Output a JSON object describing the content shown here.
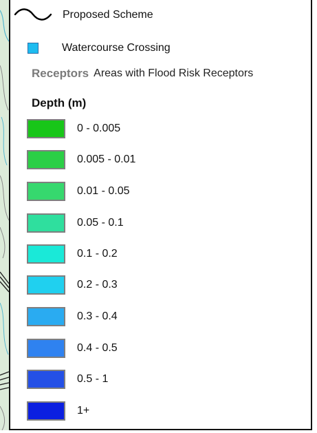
{
  "legend": {
    "proposed_scheme": {
      "label": "Proposed Scheme",
      "icon": "wavy-line-icon",
      "color": "#000000"
    },
    "watercourse_crossing": {
      "label": "Watercourse Crossing",
      "icon": "square-icon",
      "color": "#1ebcf0"
    },
    "receptors": {
      "name": "Receptors",
      "description": "Areas with Flood Risk Receptors",
      "color": "#7a7a7a"
    },
    "depth": {
      "title": "Depth (m)",
      "classes": [
        {
          "label": "0 - 0.005",
          "color": "#18c619"
        },
        {
          "label": "0.005 - 0.01",
          "color": "#2bcf46"
        },
        {
          "label": "0.01 - 0.05",
          "color": "#36d86e"
        },
        {
          "label": "0.05 - 0.1",
          "color": "#2fdf9e"
        },
        {
          "label": "0.1 - 0.2",
          "color": "#1ae9d8"
        },
        {
          "label": "0.2 - 0.3",
          "color": "#20d0ef"
        },
        {
          "label": "0.3 - 0.4",
          "color": "#2aabf1"
        },
        {
          "label": "0.4 - 0.5",
          "color": "#2f82f0"
        },
        {
          "label": "0.5 - 1",
          "color": "#2450e6"
        },
        {
          "label": "1+",
          "color": "#0b1fe0"
        }
      ]
    }
  },
  "colors": {
    "map_background": "#dcebd9",
    "map_watercourse": "#56b7cf",
    "map_line": "#8a8a8a",
    "swatch_border": "#7f7f7f"
  }
}
